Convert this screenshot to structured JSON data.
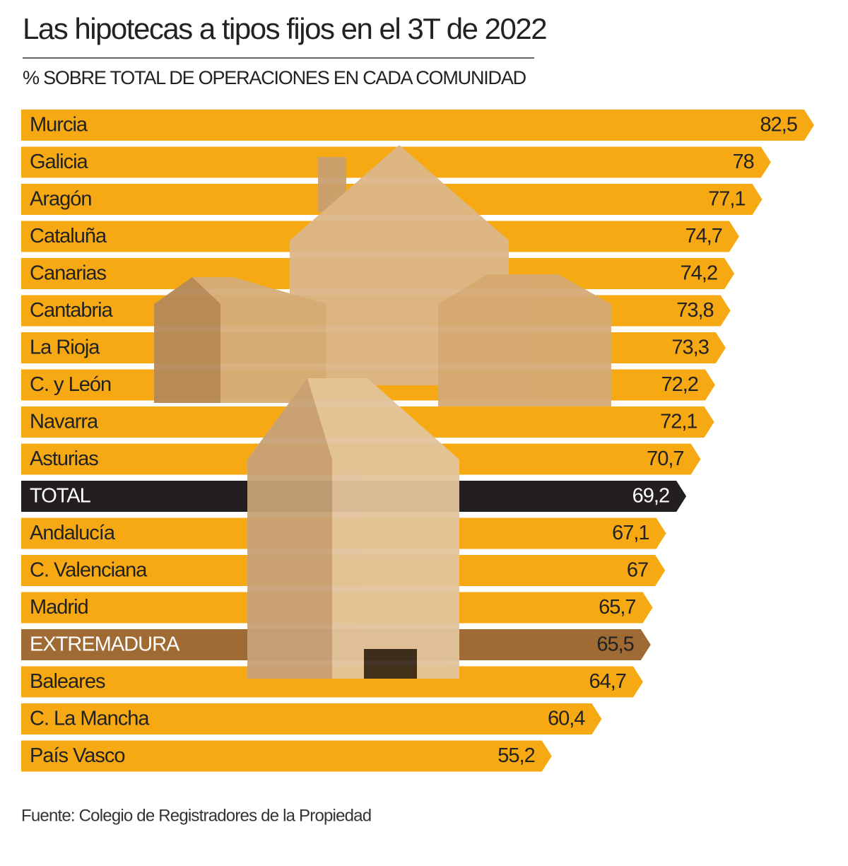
{
  "chart_data": {
    "type": "bar",
    "orientation": "horizontal",
    "title": "Las hipotecas a tipos fijos en el 3T de 2022",
    "subtitle": "% SOBRE TOTAL DE OPERACIONES EN CADA COMUNIDAD",
    "source": "Fuente: Colegio de Registradores de la Propiedad",
    "categories": [
      "Murcia",
      "Galicia",
      "Aragón",
      "Cataluña",
      "Canarias",
      "Cantabria",
      "La Rioja",
      "C. y León",
      "Navarra",
      "Asturias",
      "TOTAL",
      "Andalucía",
      "C. Valenciana",
      "Madrid",
      "EXTREMADURA",
      "Baleares",
      "C. La Mancha",
      "País Vasco"
    ],
    "values": [
      82.5,
      78,
      77.1,
      74.7,
      74.2,
      73.8,
      73.3,
      72.2,
      72.1,
      70.7,
      69.2,
      67.1,
      67,
      65.7,
      65.5,
      64.7,
      60.4,
      55.2
    ],
    "value_labels": [
      "82,5",
      "78",
      "77,1",
      "74,7",
      "74,2",
      "73,8",
      "73,3",
      "72,2",
      "72,1",
      "70,7",
      "69,2",
      "67,1",
      "67",
      "65,7",
      "65,5",
      "64,7",
      "60,4",
      "55,2"
    ],
    "colors": [
      "#f6a912",
      "#f6a912",
      "#f6a912",
      "#f6a912",
      "#f6a912",
      "#f6a912",
      "#f6a912",
      "#f6a912",
      "#f6a912",
      "#f6a912",
      "#231f20",
      "#f6a912",
      "#f6a912",
      "#f6a912",
      "#a06a35",
      "#f6a912",
      "#f6a912",
      "#f6a912"
    ]
  }
}
